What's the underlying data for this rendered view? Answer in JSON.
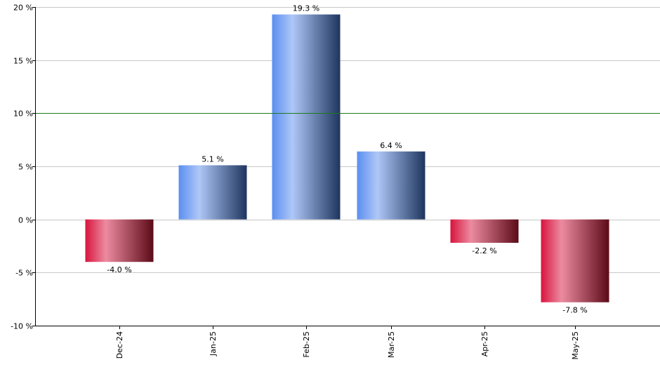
{
  "chart_data": {
    "type": "bar",
    "categories": [
      "Dec-24",
      "Jan-25",
      "Feb-25",
      "Mar-25",
      "Apr-25",
      "May-25"
    ],
    "values": [
      -4.0,
      5.1,
      19.3,
      6.4,
      -2.2,
      -7.8
    ],
    "value_labels": [
      "-4.0 %",
      "5.1 %",
      "19.3 %",
      "6.4 %",
      "-2.2 %",
      "-7.8 %"
    ],
    "ylim": [
      -10,
      20
    ],
    "yticks": [
      20,
      15,
      10,
      5,
      0,
      -5,
      -10
    ],
    "ytick_labels": [
      "20 %",
      "15 %",
      "10 %",
      "5 %",
      "0 %",
      "-5 %",
      "-10 %"
    ],
    "reference_line": 10,
    "grid": true,
    "colors": {
      "positive": [
        "#5b8ef0",
        "#aec7f7",
        "#1e355e"
      ],
      "negative": [
        "#d8143d",
        "#ec8ba0",
        "#5c0a18"
      ],
      "reference_line": "#1a7a1a",
      "grid": "#c8c8c8",
      "axis": "#000000"
    }
  }
}
